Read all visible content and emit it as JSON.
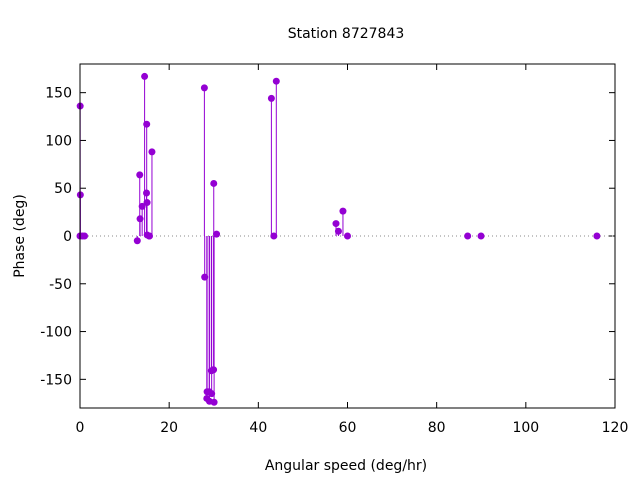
{
  "chart_data": {
    "type": "scatter",
    "style": "impulses-with-points",
    "title": "Station 8727843",
    "xlabel": "Angular speed (deg/hr)",
    "ylabel": "Phase (deg)",
    "xlim": [
      0,
      120
    ],
    "ylim": [
      -180,
      180
    ],
    "xticks": [
      0,
      20,
      40,
      60,
      80,
      100,
      120
    ],
    "yticks": [
      -150,
      -100,
      -50,
      0,
      50,
      100,
      150
    ],
    "grid": false,
    "legend": "none",
    "color": "#9400d3",
    "series": [
      {
        "x": [
          0.0,
          0.04,
          0.08,
          0.54,
          1.02,
          12.85,
          13.4,
          13.47,
          13.94,
          14.49,
          14.92,
          14.96,
          15.04,
          15.08,
          15.51,
          15.59,
          16.14,
          27.9,
          27.97,
          28.44,
          28.51,
          28.98,
          29.03,
          29.46,
          29.53,
          29.96,
          30.0,
          30.08,
          30.63,
          42.93,
          43.48,
          44.03,
          57.42,
          57.97,
          58.98,
          60.0,
          86.95,
          89.95,
          115.94
        ],
        "y": [
          0,
          136,
          43,
          0,
          0,
          -5,
          64,
          18,
          31,
          167,
          45,
          117,
          35,
          1,
          0,
          0,
          88,
          155,
          -43,
          -170,
          -163,
          -163,
          -173,
          -141,
          -165,
          -140,
          55,
          -174,
          2,
          144,
          0,
          162,
          13,
          5,
          26,
          0,
          0,
          0,
          0
        ]
      }
    ]
  }
}
